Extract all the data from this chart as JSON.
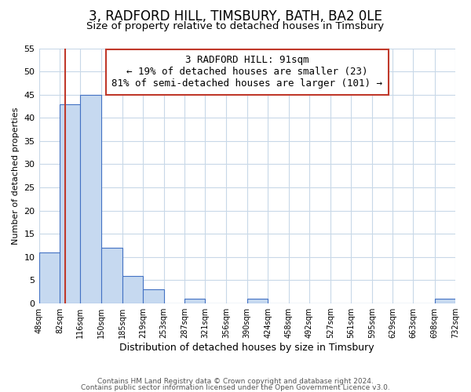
{
  "title": "3, RADFORD HILL, TIMSBURY, BATH, BA2 0LE",
  "subtitle": "Size of property relative to detached houses in Timsbury",
  "xlabel": "Distribution of detached houses by size in Timsbury",
  "ylabel": "Number of detached properties",
  "bin_edges": [
    48,
    82,
    116,
    150,
    185,
    219,
    253,
    287,
    321,
    356,
    390,
    424,
    458,
    492,
    527,
    561,
    595,
    629,
    663,
    698,
    732
  ],
  "bar_heights": [
    11,
    43,
    45,
    12,
    6,
    3,
    0,
    1,
    0,
    0,
    1,
    0,
    0,
    0,
    0,
    0,
    0,
    0,
    0,
    1
  ],
  "bar_color": "#c6d9f0",
  "bar_edge_color": "#4472c4",
  "ylim": [
    0,
    55
  ],
  "yticks": [
    0,
    5,
    10,
    15,
    20,
    25,
    30,
    35,
    40,
    45,
    50,
    55
  ],
  "property_size": 91,
  "vline_color": "#c0392b",
  "annotation_line1": "3 RADFORD HILL: 91sqm",
  "annotation_line2": "← 19% of detached houses are smaller (23)",
  "annotation_line3": "81% of semi-detached houses are larger (101) →",
  "annotation_box_color": "#c0392b",
  "footer_line1": "Contains HM Land Registry data © Crown copyright and database right 2024.",
  "footer_line2": "Contains public sector information licensed under the Open Government Licence v3.0.",
  "background_color": "#ffffff",
  "grid_color": "#c8d8e8",
  "title_fontsize": 12,
  "subtitle_fontsize": 9.5,
  "annotation_fontsize": 9,
  "ylabel_fontsize": 8,
  "xlabel_fontsize": 9
}
